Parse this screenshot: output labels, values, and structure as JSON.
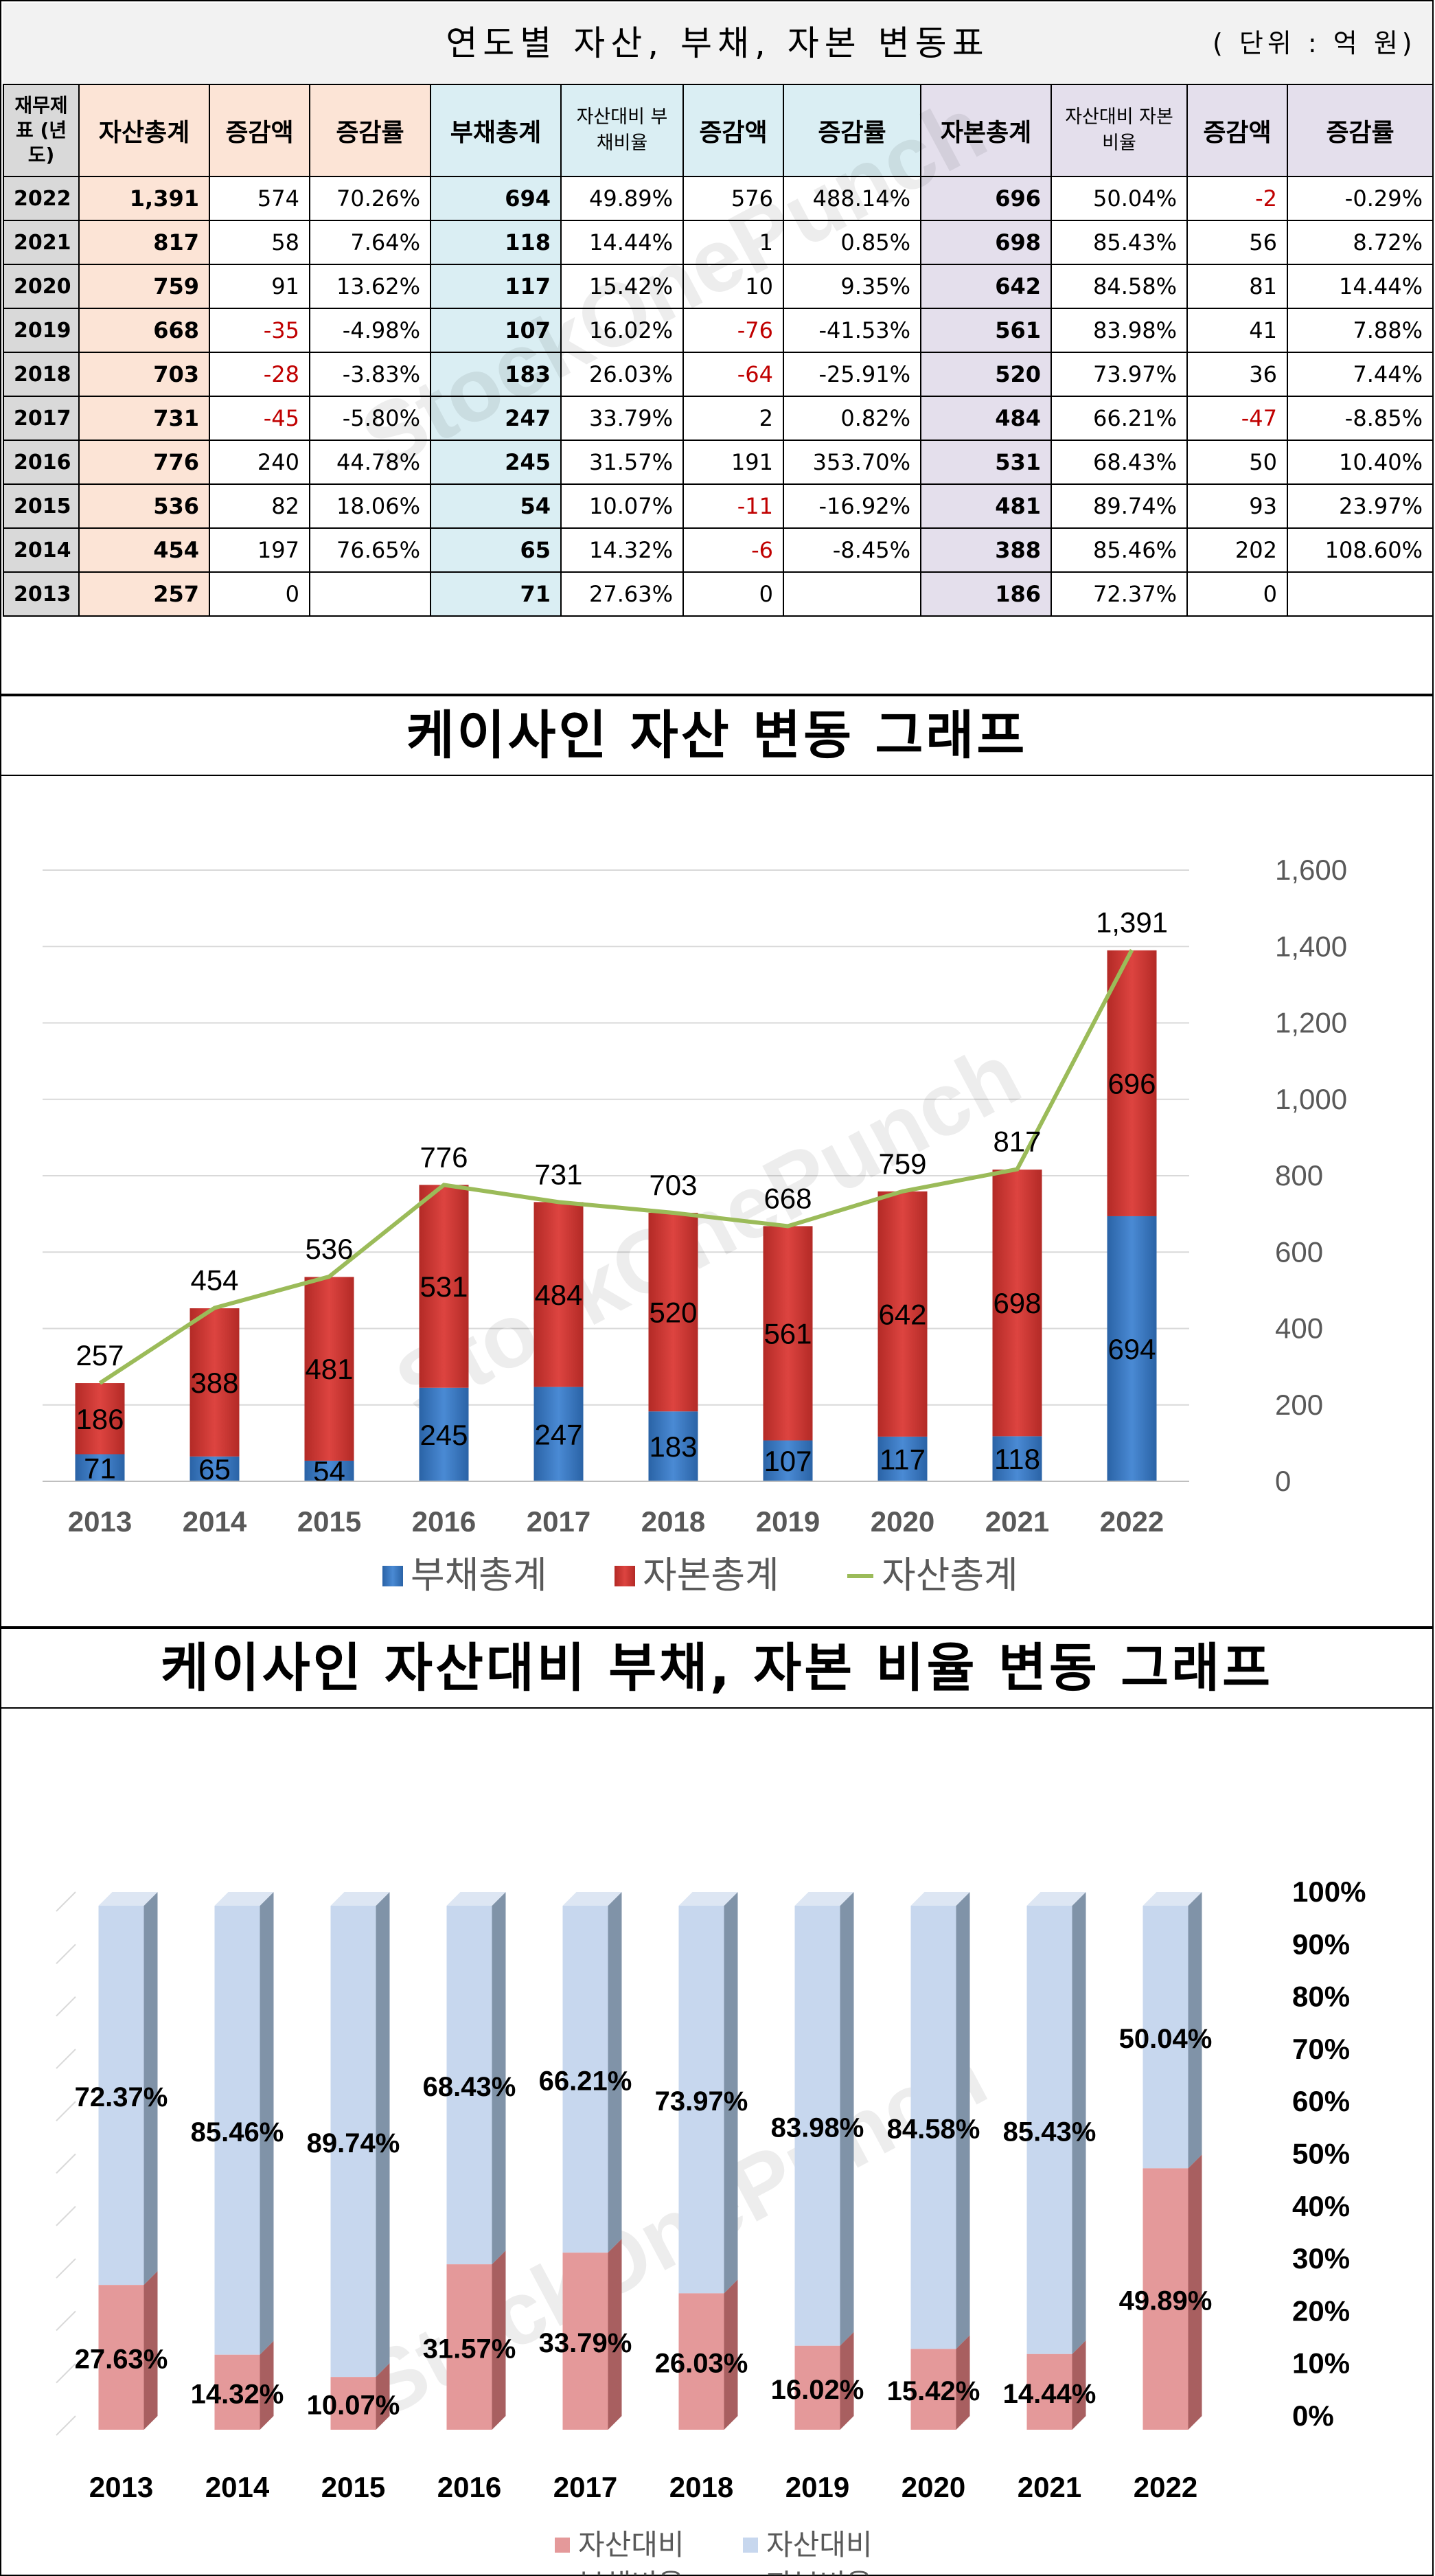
{
  "table": {
    "title": "연도별 자산, 부채, 자본 변동표",
    "unit": "( 단위 : 억 원)",
    "headers": [
      "재무제표 (년도)",
      "자산총계",
      "증감액",
      "증감률",
      "부채총계",
      "자산대비 부채비율",
      "증감액",
      "증감률",
      "자본총계",
      "자산대비 자본비율",
      "증감액",
      "증감률"
    ],
    "rows": [
      [
        "2022",
        "1,391",
        "574",
        "70.26%",
        "694",
        "49.89%",
        "576",
        "488.14%",
        "696",
        "50.04%",
        "-2",
        "-0.29%"
      ],
      [
        "2021",
        "817",
        "58",
        "7.64%",
        "118",
        "14.44%",
        "1",
        "0.85%",
        "698",
        "85.43%",
        "56",
        "8.72%"
      ],
      [
        "2020",
        "759",
        "91",
        "13.62%",
        "117",
        "15.42%",
        "10",
        "9.35%",
        "642",
        "84.58%",
        "81",
        "14.44%"
      ],
      [
        "2019",
        "668",
        "-35",
        "-4.98%",
        "107",
        "16.02%",
        "-76",
        "-41.53%",
        "561",
        "83.98%",
        "41",
        "7.88%"
      ],
      [
        "2018",
        "703",
        "-28",
        "-3.83%",
        "183",
        "26.03%",
        "-64",
        "-25.91%",
        "520",
        "73.97%",
        "36",
        "7.44%"
      ],
      [
        "2017",
        "731",
        "-45",
        "-5.80%",
        "247",
        "33.79%",
        "2",
        "0.82%",
        "484",
        "66.21%",
        "-47",
        "-8.85%"
      ],
      [
        "2016",
        "776",
        "240",
        "44.78%",
        "245",
        "31.57%",
        "191",
        "353.70%",
        "531",
        "68.43%",
        "50",
        "10.40%"
      ],
      [
        "2015",
        "536",
        "82",
        "18.06%",
        "54",
        "10.07%",
        "-11",
        "-16.92%",
        "481",
        "89.74%",
        "93",
        "23.97%"
      ],
      [
        "2014",
        "454",
        "197",
        "76.65%",
        "65",
        "14.32%",
        "-6",
        "-8.45%",
        "388",
        "85.46%",
        "202",
        "108.60%"
      ],
      [
        "2013",
        "257",
        "0",
        "",
        "71",
        "27.63%",
        "0",
        "",
        "186",
        "72.37%",
        "0",
        ""
      ]
    ]
  },
  "watermark": "StockOnePunch",
  "colors": {
    "liab_bar": "#2e6fba",
    "equity_bar": "#c6302b",
    "asset_line": "#9bbb59",
    "liab_ratio": "#e4999a",
    "equity_ratio": "#c7d7ee",
    "negative_text": "#c00000"
  },
  "chart_data": [
    {
      "type": "bar",
      "stacked": true,
      "title": "케이사인 자산 변동 그래프",
      "categories": [
        "2013",
        "2014",
        "2015",
        "2016",
        "2017",
        "2018",
        "2019",
        "2020",
        "2021",
        "2022"
      ],
      "series": [
        {
          "name": "부채총계",
          "kind": "bar",
          "values": [
            71,
            65,
            54,
            245,
            247,
            183,
            107,
            117,
            118,
            694
          ]
        },
        {
          "name": "자본총계",
          "kind": "bar",
          "values": [
            186,
            388,
            481,
            531,
            484,
            520,
            561,
            642,
            698,
            696
          ]
        },
        {
          "name": "자산총계",
          "kind": "line",
          "values": [
            257,
            454,
            536,
            776,
            731,
            703,
            668,
            759,
            817,
            1391
          ]
        }
      ],
      "y_ticks": [
        "0",
        "200",
        "400",
        "600",
        "800",
        "1,000",
        "1,200",
        "1,400",
        "1,600"
      ],
      "asset_labels": [
        "257",
        "454",
        "536",
        "776",
        "731",
        "703",
        "668",
        "759",
        "817",
        "1,391"
      ],
      "ylim": [
        0,
        1600
      ],
      "y_axis_side": "right",
      "grid": true,
      "legend_position": "bottom"
    },
    {
      "type": "bar",
      "stacked": true,
      "percent": true,
      "style": "3d",
      "title": "케이사인 자산대비 부채, 자본 비율 변동 그래프",
      "categories": [
        "2013",
        "2014",
        "2015",
        "2016",
        "2017",
        "2018",
        "2019",
        "2020",
        "2021",
        "2022"
      ],
      "series": [
        {
          "name": "자산대비 부채비율",
          "values": [
            27.63,
            14.32,
            10.07,
            31.57,
            33.79,
            26.03,
            16.02,
            15.42,
            14.44,
            49.89
          ]
        },
        {
          "name": "자산대비 자본비율",
          "values": [
            72.37,
            85.46,
            89.74,
            68.43,
            66.21,
            73.97,
            83.98,
            84.58,
            85.43,
            50.04
          ]
        }
      ],
      "labels_liab": [
        "27.63%",
        "14.32%",
        "10.07%",
        "31.57%",
        "33.79%",
        "26.03%",
        "16.02%",
        "15.42%",
        "14.44%",
        "49.89%"
      ],
      "labels_equity": [
        "72.37%",
        "85.46%",
        "89.74%",
        "68.43%",
        "66.21%",
        "73.97%",
        "83.98%",
        "84.58%",
        "85.43%",
        "50.04%"
      ],
      "legend_liab_lines": [
        "자산대비",
        "부채비율"
      ],
      "legend_equity_lines": [
        "자산대비",
        "자본비율"
      ],
      "y_ticks": [
        "0%",
        "10%",
        "20%",
        "30%",
        "40%",
        "50%",
        "60%",
        "70%",
        "80%",
        "90%",
        "100%"
      ],
      "ylim": [
        0,
        100
      ],
      "y_axis_side": "right",
      "legend_position": "bottom"
    }
  ]
}
